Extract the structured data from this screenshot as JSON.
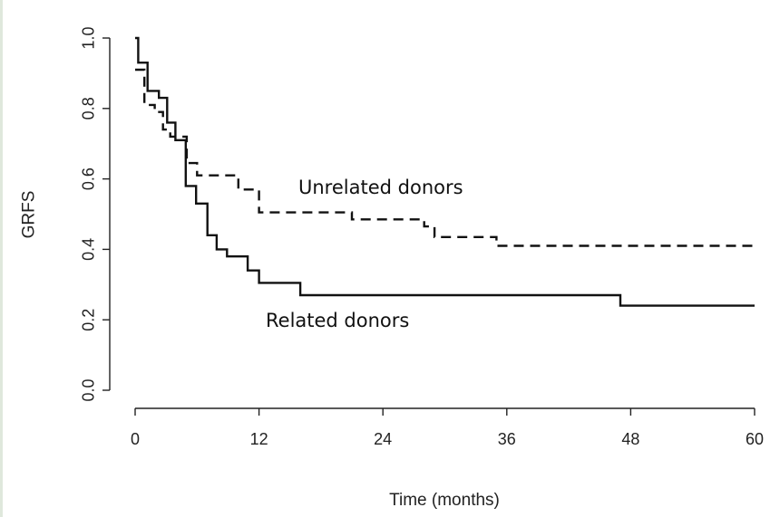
{
  "chart_data": {
    "type": "line",
    "title": "",
    "xlabel": "Time (months)",
    "ylabel": "GRFS",
    "xlim": [
      0,
      60
    ],
    "ylim": [
      0,
      1
    ],
    "xticks": [
      0,
      12,
      24,
      36,
      48,
      60
    ],
    "xtick_labels": [
      "0",
      "12",
      "24",
      "36",
      "48",
      "60"
    ],
    "yticks": [
      0,
      0.2,
      0.4,
      0.6,
      0.8,
      1.0
    ],
    "ytick_labels": [
      "0.0",
      "0.2",
      "0.4",
      "0.6",
      "0.8",
      "1.0"
    ],
    "grid": false,
    "legend": "none",
    "series": [
      {
        "name": "Related donors",
        "style": "solid",
        "color": "#111111",
        "steps": [
          [
            0,
            1.0
          ],
          [
            0.3,
            0.93
          ],
          [
            1.2,
            0.85
          ],
          [
            2.3,
            0.83
          ],
          [
            3.1,
            0.76
          ],
          [
            3.9,
            0.71
          ],
          [
            4.9,
            0.58
          ],
          [
            5.9,
            0.53
          ],
          [
            7.0,
            0.44
          ],
          [
            7.9,
            0.4
          ],
          [
            8.9,
            0.38
          ],
          [
            10.9,
            0.34
          ],
          [
            12.0,
            0.305
          ],
          [
            16.0,
            0.27
          ],
          [
            47.0,
            0.24
          ],
          [
            60,
            0.24
          ]
        ]
      },
      {
        "name": "Unrelated donors",
        "style": "dashed",
        "color": "#111111",
        "steps": [
          [
            0,
            0.91
          ],
          [
            0.9,
            0.81
          ],
          [
            1.9,
            0.79
          ],
          [
            2.7,
            0.74
          ],
          [
            3.4,
            0.72
          ],
          [
            5.0,
            0.645
          ],
          [
            6.0,
            0.61
          ],
          [
            10.0,
            0.57
          ],
          [
            12.0,
            0.505
          ],
          [
            21.0,
            0.485
          ],
          [
            28.0,
            0.465
          ],
          [
            29.0,
            0.435
          ],
          [
            35.0,
            0.41
          ],
          [
            60,
            0.41
          ]
        ]
      }
    ],
    "annotations": [
      {
        "text": "Unrelated donors"
      },
      {
        "text": "Related donors"
      }
    ]
  }
}
